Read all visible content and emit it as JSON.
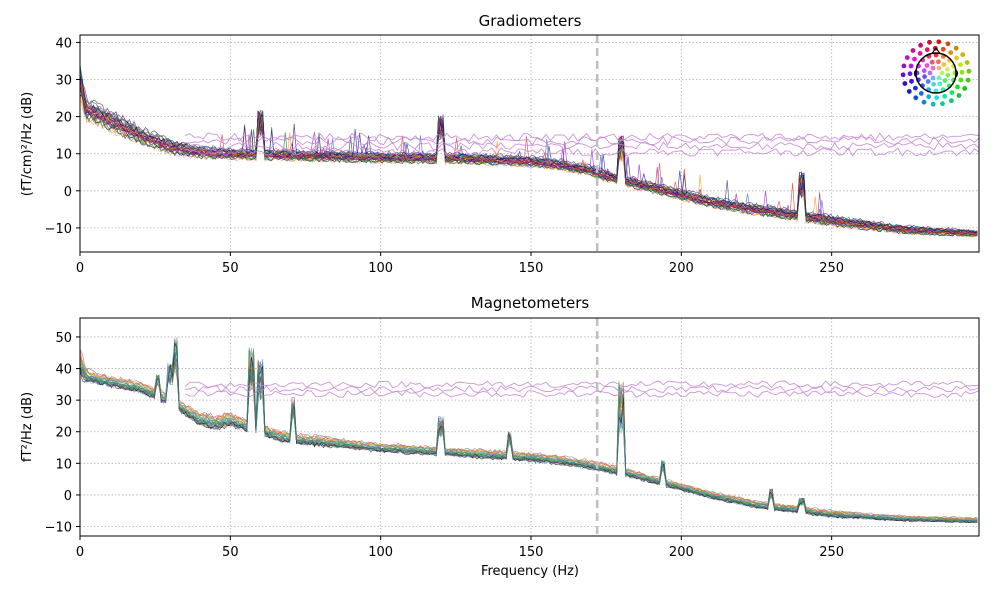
{
  "chart_data": [
    {
      "type": "line",
      "title": "Gradiometers",
      "xlabel": "",
      "ylabel": "(fT/cm)²/Hz (dB)",
      "xlim": [
        0,
        299
      ],
      "ylim": [
        -16.5,
        42
      ],
      "x_ticks": [
        0,
        50,
        100,
        150,
        200,
        250
      ],
      "y_ticks": [
        -10,
        0,
        10,
        20,
        30,
        40
      ],
      "grid": true,
      "cutoff_line_hz": 172,
      "cutoff_line_color": "#bfbfbf",
      "sensor_layout_inset": "top-right",
      "n_channels_approx": 204,
      "spectrum_envelope": {
        "x": [
          0,
          2,
          5,
          10,
          15,
          20,
          30,
          40,
          50,
          75,
          100,
          125,
          150,
          160,
          170,
          175,
          180,
          190,
          200,
          210,
          225,
          250,
          275,
          299
        ],
        "mean_db": [
          30,
          22,
          21,
          19,
          17,
          15,
          12,
          10.5,
          10,
          9.5,
          9,
          8.8,
          8,
          7,
          5.5,
          4,
          3,
          1,
          -1,
          -3,
          -5,
          -8,
          -10.5,
          -11.5
        ],
        "spread_db": [
          8,
          5,
          5,
          5,
          4.5,
          4,
          3.5,
          3,
          2.5,
          2.5,
          2.5,
          2.5,
          2.5,
          2.5,
          2.5,
          2.5,
          2.5,
          2.5,
          2.5,
          2.5,
          2.5,
          2.5,
          2,
          1.5
        ]
      },
      "line_noise_peaks_hz": [
        60,
        120,
        180,
        240
      ],
      "noisy_channels_flat_db": [
        10.5,
        12,
        13.5,
        14.5
      ]
    },
    {
      "type": "line",
      "title": "Magnetometers",
      "xlabel": "Frequency (Hz)",
      "ylabel": "fT²/Hz (dB)",
      "xlim": [
        0,
        299
      ],
      "ylim": [
        -13,
        56
      ],
      "x_ticks": [
        0,
        50,
        100,
        150,
        200,
        250
      ],
      "y_ticks": [
        -10,
        0,
        10,
        20,
        30,
        40,
        50
      ],
      "grid": true,
      "cutoff_line_hz": 172,
      "cutoff_line_color": "#bfbfbf",
      "n_channels_approx": 102,
      "spectrum_envelope": {
        "x": [
          0,
          2,
          5,
          10,
          15,
          20,
          25,
          30,
          35,
          40,
          45,
          50,
          55,
          60,
          65,
          70,
          80,
          90,
          100,
          125,
          150,
          160,
          170,
          175,
          180,
          190,
          200,
          210,
          225,
          250,
          275,
          299
        ],
        "mean_db": [
          42,
          38,
          37,
          36,
          35,
          34,
          32,
          30,
          27,
          24,
          23,
          24,
          22,
          21,
          19,
          18,
          17,
          16,
          15,
          13.5,
          12,
          11,
          9.5,
          8.5,
          7.5,
          5,
          2.5,
          0,
          -3,
          -6,
          -7.5,
          -8
        ],
        "spread_db": [
          8,
          4,
          3,
          3,
          3,
          3,
          3,
          3,
          3,
          4,
          4,
          4,
          3.5,
          3,
          3,
          3,
          3,
          2.5,
          2.5,
          2.5,
          2.5,
          2.5,
          2.5,
          2.5,
          2.5,
          2,
          2,
          2,
          2,
          2,
          1.5,
          1.5
        ]
      },
      "peaks": [
        {
          "hz": 32,
          "db": 50
        },
        {
          "hz": 30,
          "db": 42
        },
        {
          "hz": 26,
          "db": 38
        },
        {
          "hz": 57,
          "db": 47
        },
        {
          "hz": 60,
          "db": 43
        },
        {
          "hz": 71,
          "db": 31
        },
        {
          "hz": 120,
          "db": 25
        },
        {
          "hz": 143,
          "db": 20
        },
        {
          "hz": 180,
          "db": 36
        },
        {
          "hz": 194,
          "db": 11
        },
        {
          "hz": 230,
          "db": 2
        },
        {
          "hz": 240,
          "db": -1
        }
      ],
      "noisy_channels_flat_db": [
        32,
        33.5,
        35
      ]
    }
  ]
}
